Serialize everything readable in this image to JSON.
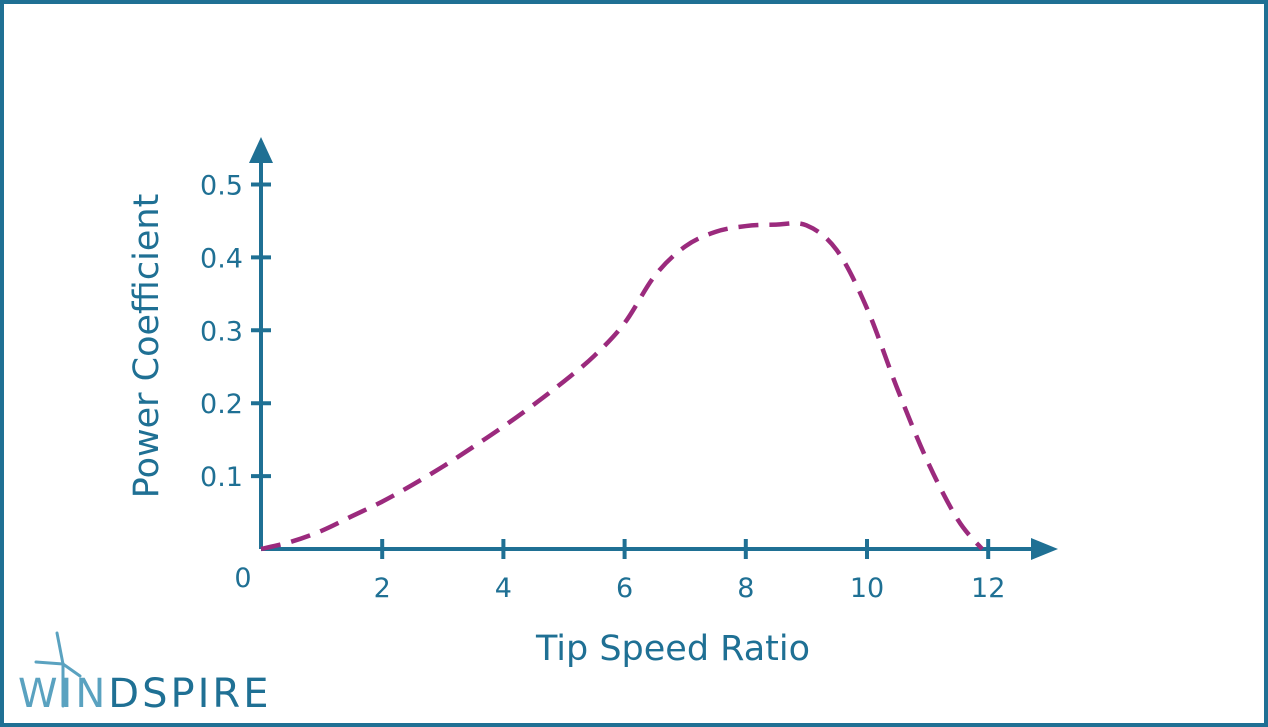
{
  "chart_data": {
    "type": "line",
    "title": "",
    "xlabel": "Tip Speed Ratio",
    "ylabel": "Power Coefficient",
    "xlim": [
      0,
      13
    ],
    "ylim": [
      0,
      0.55
    ],
    "origin_label": "0",
    "x_ticks": [
      2,
      4,
      6,
      8,
      10,
      12
    ],
    "x_tick_labels": [
      "2",
      "4",
      "6",
      "8",
      "10",
      "12"
    ],
    "y_ticks": [
      0.1,
      0.2,
      0.3,
      0.4,
      0.5
    ],
    "y_tick_labels": [
      "0.1",
      "0.2",
      "0.3",
      "0.4",
      "0.5"
    ],
    "grid": false,
    "line_style": "dashed",
    "series": [
      {
        "color": "#9b2a7d",
        "x": [
          0,
          0.5,
          1,
          1.5,
          2,
          2.5,
          3,
          3.5,
          4,
          4.5,
          5,
          5.5,
          6,
          6.5,
          7,
          7.5,
          8,
          8.5,
          9,
          9.5,
          10,
          10.5,
          11,
          11.5,
          11.9
        ],
        "y": [
          0,
          0.01,
          0.025,
          0.045,
          0.065,
          0.088,
          0.113,
          0.14,
          0.168,
          0.198,
          0.23,
          0.265,
          0.31,
          0.375,
          0.415,
          0.435,
          0.443,
          0.445,
          0.444,
          0.41,
          0.33,
          0.22,
          0.12,
          0.04,
          0
        ]
      }
    ]
  },
  "colors": {
    "axis": "#1f7094",
    "line": "#9b2a7d",
    "border": "#1f7094",
    "logo_dark": "#1f7094",
    "logo_light": "#5aa2c0"
  },
  "logo": {
    "part1": "WI",
    "part2": "N",
    "part3": "D",
    "part4": "SPIRE",
    "icon": "wind-turbine-icon"
  }
}
